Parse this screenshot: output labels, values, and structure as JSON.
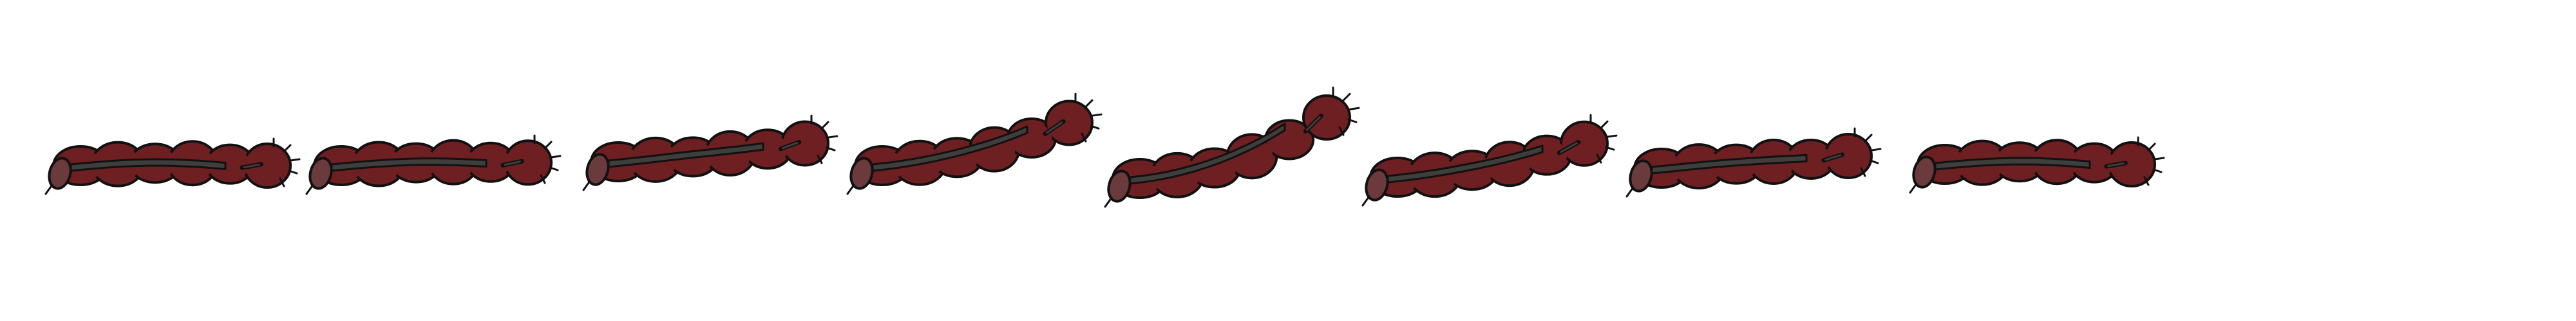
{
  "sprite_sheet": {
    "frame_count": 8,
    "colors": {
      "background": "#ffffff",
      "body": "#6e1f22",
      "tail": "#6a3a3c",
      "stripe": "#3e3e3c",
      "outline": "#111111"
    },
    "frames": [
      {
        "name": "frame-1",
        "rise": 0.0,
        "mouth": "closed"
      },
      {
        "name": "frame-2",
        "rise": 0.05,
        "mouth": "closed"
      },
      {
        "name": "frame-3",
        "rise": 0.3,
        "mouth": "closed"
      },
      {
        "name": "frame-4",
        "rise": 0.7,
        "mouth": "open"
      },
      {
        "name": "frame-5",
        "rise": 1.0,
        "mouth": "open"
      },
      {
        "name": "frame-6",
        "rise": 0.55,
        "mouth": "open"
      },
      {
        "name": "frame-7",
        "rise": 0.2,
        "mouth": "closed"
      },
      {
        "name": "frame-8",
        "rise": 0.0,
        "mouth": "closed"
      }
    ]
  }
}
